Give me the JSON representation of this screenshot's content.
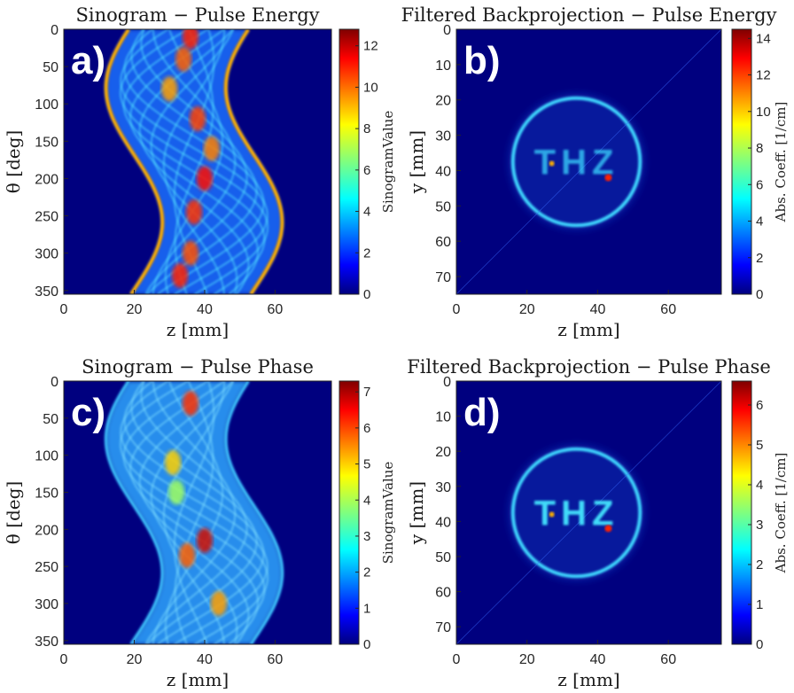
{
  "colors": {
    "background": "#00007f",
    "colormap": [
      "#00007f",
      "#0000ff",
      "#007fff",
      "#00ffff",
      "#7fff7f",
      "#ffff00",
      "#ff7f00",
      "#ff0000",
      "#7f0000"
    ]
  },
  "chart_data": [
    {
      "panel": "a)",
      "type": "heatmap",
      "title": "Sinogram − Pulse Energy",
      "xlabel": "z [mm]",
      "ylabel": "θ [deg]",
      "xlim": [
        0,
        76
      ],
      "ylim": [
        0,
        355
      ],
      "y_reversed": true,
      "xticks": [
        "0",
        "20",
        "40",
        "60"
      ],
      "yticks": [
        "0",
        "50",
        "100",
        "150",
        "200",
        "250",
        "300",
        "350"
      ],
      "colorbar": {
        "label": "SinogramValue",
        "range": [
          0,
          12.8
        ],
        "ticks": [
          "0",
          "2",
          "4",
          "6",
          "8",
          "10",
          "12"
        ]
      },
      "content": "sinogram"
    },
    {
      "panel": "b)",
      "type": "heatmap",
      "title": "Filtered Backprojection − Pulse Energy",
      "xlabel": "z [mm]",
      "ylabel": "y [mm]",
      "xlim": [
        0,
        75
      ],
      "ylim": [
        0,
        75
      ],
      "y_reversed": true,
      "xticks": [
        "0",
        "20",
        "40",
        "60"
      ],
      "yticks": [
        "0",
        "10",
        "20",
        "30",
        "40",
        "50",
        "60",
        "70"
      ],
      "colorbar": {
        "label": "Abs. Coeff. [1/cm]",
        "range": [
          0,
          14.5
        ],
        "ticks": [
          "0",
          "2",
          "4",
          "6",
          "8",
          "10",
          "12",
          "14"
        ]
      },
      "content": "reconstruction",
      "inner_text": "THZ"
    },
    {
      "panel": "c)",
      "type": "heatmap",
      "title": "Sinogram − Pulse Phase",
      "xlabel": "z [mm]",
      "ylabel": "θ [deg]",
      "xlim": [
        0,
        76
      ],
      "ylim": [
        0,
        355
      ],
      "y_reversed": true,
      "xticks": [
        "0",
        "20",
        "40",
        "60"
      ],
      "yticks": [
        "0",
        "50",
        "100",
        "150",
        "200",
        "250",
        "300",
        "350"
      ],
      "colorbar": {
        "label": "SinogramValue",
        "range": [
          0,
          7.3
        ],
        "ticks": [
          "0",
          "1",
          "2",
          "3",
          "4",
          "5",
          "6",
          "7"
        ]
      },
      "content": "sinogram"
    },
    {
      "panel": "d)",
      "type": "heatmap",
      "title": "Filtered Backprojection − Pulse Phase",
      "xlabel": "z [mm]",
      "ylabel": "y [mm]",
      "xlim": [
        0,
        75
      ],
      "ylim": [
        0,
        75
      ],
      "y_reversed": true,
      "xticks": [
        "0",
        "20",
        "40",
        "60"
      ],
      "yticks": [
        "0",
        "10",
        "20",
        "30",
        "40",
        "50",
        "60",
        "70"
      ],
      "colorbar": {
        "label": "Abs. Coeff. [1/cm]",
        "range": [
          0,
          6.6
        ],
        "ticks": [
          "0",
          "1",
          "2",
          "3",
          "4",
          "5",
          "6"
        ]
      },
      "content": "reconstruction",
      "inner_text": "THZ"
    }
  ]
}
